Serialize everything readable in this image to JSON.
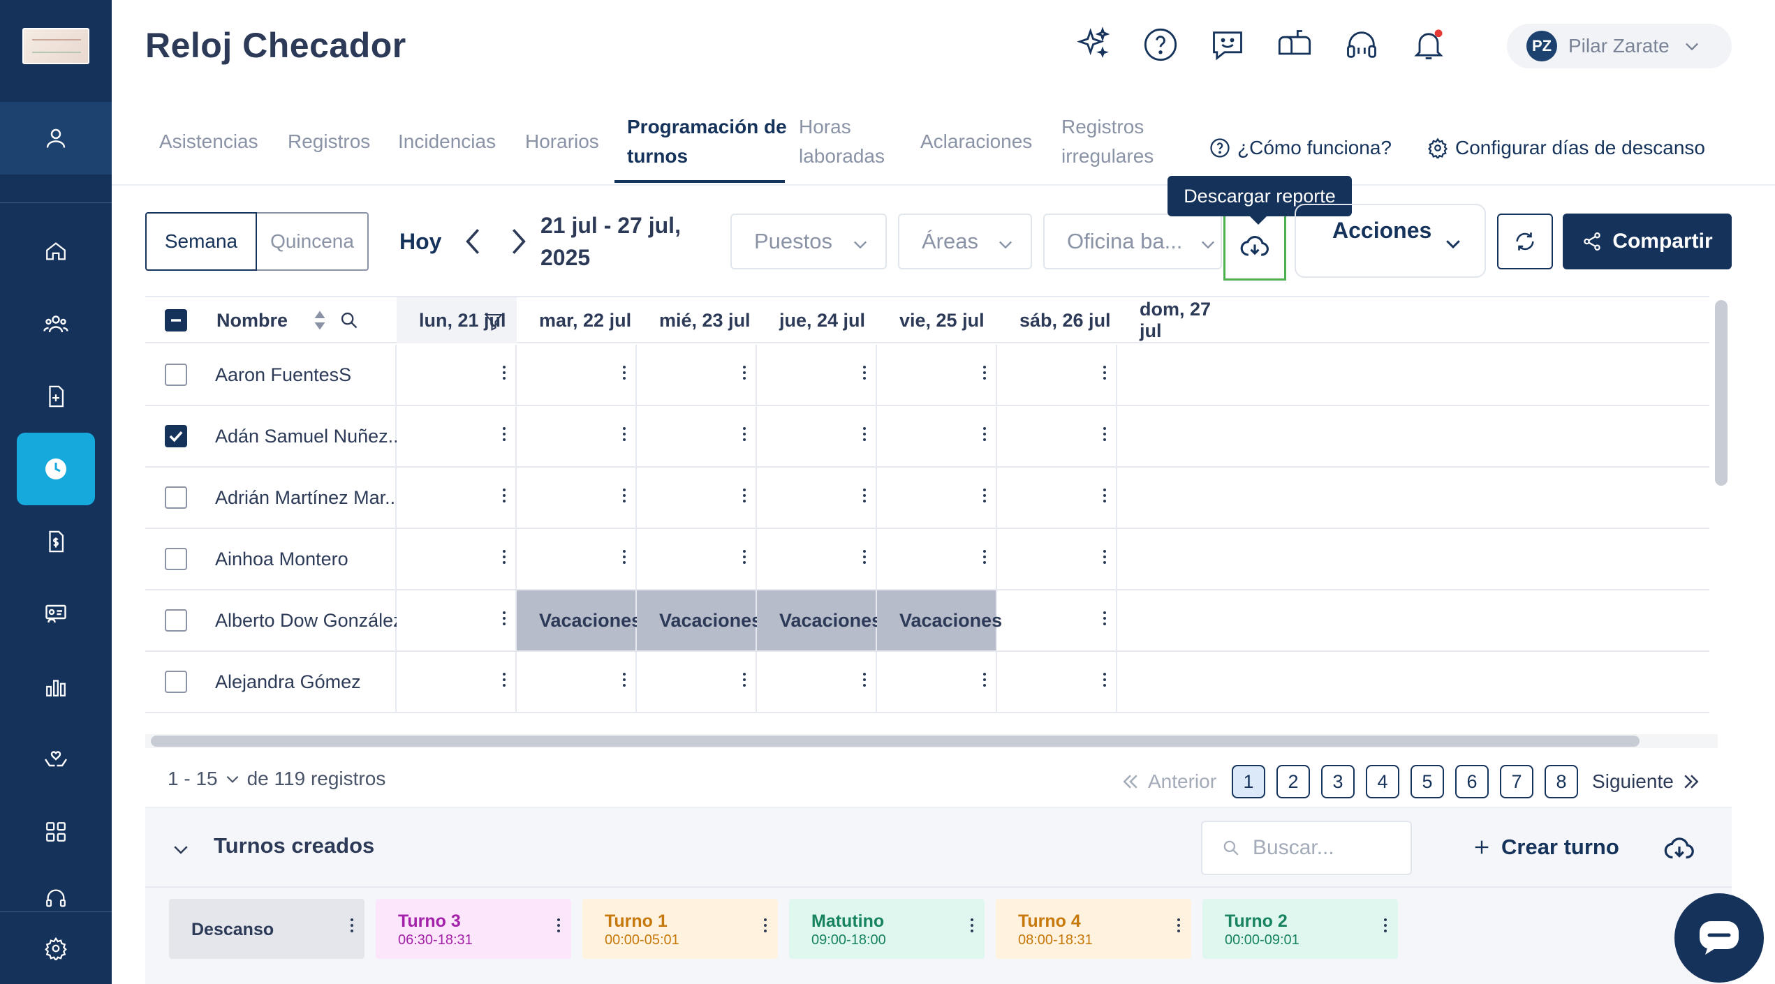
{
  "app": {
    "title": "Reloj Checador"
  },
  "header": {
    "user": {
      "initials": "PZ",
      "name": "Pilar Zarate"
    }
  },
  "tabs": [
    {
      "label": "Asistencias"
    },
    {
      "label": "Registros"
    },
    {
      "label": "Incidencias"
    },
    {
      "label": "Horarios"
    },
    {
      "label": "Programación de turnos",
      "active": true
    },
    {
      "label": "Horas laboradas"
    },
    {
      "label": "Aclaraciones"
    },
    {
      "label": "Registros irregulares"
    }
  ],
  "tab_links": {
    "how": "¿Cómo funciona?",
    "rest_days": "Configurar días de descanso"
  },
  "toolbar": {
    "view_week": "Semana",
    "view_fortnight": "Quincena",
    "today": "Hoy",
    "date_range": "21 jul - 27 jul, 2025",
    "filter_positions": "Puestos",
    "filter_areas": "Áreas",
    "filter_office": "Oficina ba...",
    "download_tooltip": "Descargar reporte",
    "actions": "Acciones",
    "share": "Compartir"
  },
  "table": {
    "name_header": "Nombre",
    "days": [
      "lun, 21 jul",
      "mar, 22 jul",
      "mié, 23 jul",
      "jue, 24 jul",
      "vie, 25 jul",
      "sáb, 26 jul",
      "dom, 27 jul"
    ],
    "rows": [
      {
        "name": "Aaron FuentesS",
        "checked": false,
        "cells": [
          "",
          "",
          "",
          "",
          "",
          "",
          ""
        ]
      },
      {
        "name": "Adán Samuel Nuñez...",
        "checked": true,
        "cells": [
          "",
          "",
          "",
          "",
          "",
          "",
          ""
        ]
      },
      {
        "name": "Adrián Martínez Mar...",
        "checked": false,
        "cells": [
          "",
          "",
          "",
          "",
          "",
          "",
          ""
        ]
      },
      {
        "name": "Ainhoa Montero",
        "checked": false,
        "cells": [
          "",
          "",
          "",
          "",
          "",
          "",
          ""
        ]
      },
      {
        "name": "Alberto Dow González",
        "checked": false,
        "cells": [
          "",
          "Vacaciones",
          "Vacaciones",
          "Vacaciones",
          "Vacaciones",
          "",
          ""
        ]
      },
      {
        "name": "Alejandra Gómez",
        "checked": false,
        "cells": [
          "",
          "",
          "",
          "",
          "",
          "",
          ""
        ]
      }
    ]
  },
  "pagination": {
    "range": "1 - 15",
    "total": "de 119 registros",
    "prev": "Anterior",
    "next": "Siguiente",
    "pages": [
      "1",
      "2",
      "3",
      "4",
      "5",
      "6",
      "7",
      "8"
    ],
    "current": "1"
  },
  "turnos": {
    "title": "Turnos creados",
    "search_placeholder": "Buscar...",
    "create": "Crear turno",
    "chips": [
      {
        "name": "Descanso",
        "time": "",
        "bg": "#e4e6ec",
        "color": "#2c3a57"
      },
      {
        "name": "Turno 3",
        "time": "06:30-18:31",
        "bg": "#fbe6fb",
        "color": "#a321a8"
      },
      {
        "name": "Turno 1",
        "time": "00:00-05:01",
        "bg": "#fff2df",
        "color": "#c7780a"
      },
      {
        "name": "Matutino",
        "time": "09:00-18:00",
        "bg": "#dff7ef",
        "color": "#17835f"
      },
      {
        "name": "Turno 4",
        "time": "08:00-18:31",
        "bg": "#fff2df",
        "color": "#c7780a"
      },
      {
        "name": "Turno 2",
        "time": "00:00-09:01",
        "bg": "#dff7ef",
        "color": "#17835f"
      }
    ]
  },
  "colors": {
    "primary": "#15325a",
    "accent": "#16a9dc",
    "highlight": "#4caf50"
  }
}
